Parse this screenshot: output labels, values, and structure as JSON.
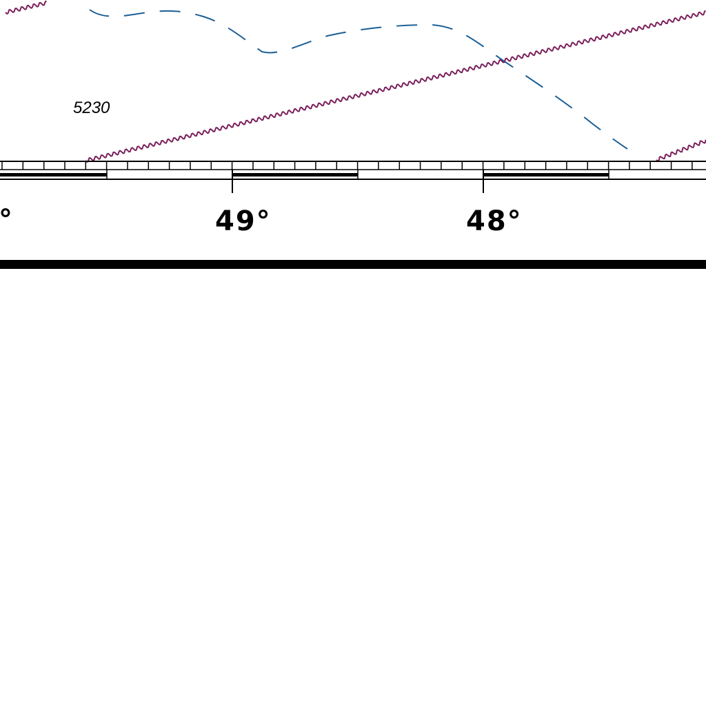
{
  "map": {
    "depth_sounding": "5230",
    "longitude_labels": {
      "left_partial": "°",
      "center": "49°",
      "right": "48°"
    },
    "colors": {
      "depth_contour": "#1a5f96",
      "boundary_line": "#7a1f5a",
      "border": "#000000",
      "background": "#ffffff"
    },
    "line_styles": {
      "depth_contour": "dashed",
      "boundary_line": "wavy"
    }
  }
}
